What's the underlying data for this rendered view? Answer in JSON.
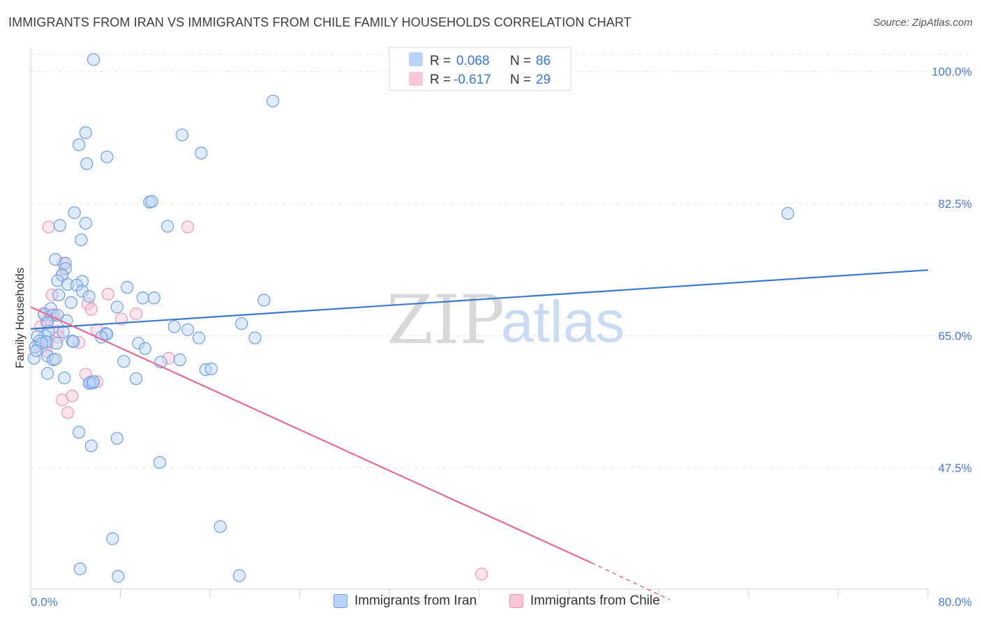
{
  "header": {
    "title": "IMMIGRANTS FROM IRAN VS IMMIGRANTS FROM CHILE FAMILY HOUSEHOLDS CORRELATION CHART",
    "source": "Source: ZipAtlas.com"
  },
  "watermark": {
    "zip": "ZIP",
    "atlas": "atlas"
  },
  "legend": {
    "r_label": "R =",
    "n_label": "N =",
    "items": [
      {
        "r": "0.068",
        "n": "86",
        "fill": "#b9d3f6",
        "stroke": "#6f9fe3"
      },
      {
        "r": "-0.617",
        "n": "29",
        "fill": "#f9c6d6",
        "stroke": "#ee94b1"
      }
    ]
  },
  "colors": {
    "iran": "#3a78d0",
    "iran_fill": "#b9d3f6",
    "chile": "#e26b94",
    "chile_fill": "#f8c4d4",
    "tick_text": "#4a7bd0"
  },
  "chart_data": {
    "type": "scatter",
    "title": "IMMIGRANTS FROM IRAN VS IMMIGRANTS FROM CHILE FAMILY HOUSEHOLDS CORRELATION CHART",
    "xlabel": "",
    "ylabel": "Family Households",
    "xlim": [
      0,
      80
    ],
    "ylim": [
      31.4,
      103.2
    ],
    "x_tick_labels": [
      "0.0%",
      "80.0%"
    ],
    "y_ticks": [
      {
        "value": 100.0,
        "label": "100.0%"
      },
      {
        "value": 82.5,
        "label": "82.5%"
      },
      {
        "value": 65.0,
        "label": "65.0%"
      },
      {
        "value": 47.5,
        "label": "47.5%"
      }
    ],
    "series": [
      {
        "name": "Immigrants from Iran",
        "trend": {
          "x": [
            0,
            80
          ],
          "y": [
            65.9,
            73.7
          ]
        },
        "points": [
          [
            5.6,
            101.6
          ],
          [
            21.6,
            96.1
          ],
          [
            4.9,
            91.9
          ],
          [
            13.5,
            91.6
          ],
          [
            4.3,
            90.3
          ],
          [
            15.2,
            89.2
          ],
          [
            6.8,
            88.7
          ],
          [
            5.0,
            87.8
          ],
          [
            10.6,
            82.7
          ],
          [
            10.8,
            82.8
          ],
          [
            3.9,
            81.3
          ],
          [
            67.5,
            81.2
          ],
          [
            4.9,
            79.9
          ],
          [
            2.6,
            79.6
          ],
          [
            12.2,
            79.5
          ],
          [
            4.5,
            77.7
          ],
          [
            2.2,
            75.1
          ],
          [
            3.1,
            74.6
          ],
          [
            3.1,
            73.9
          ],
          [
            2.8,
            73.0
          ],
          [
            2.4,
            72.3
          ],
          [
            4.6,
            72.2
          ],
          [
            3.3,
            71.8
          ],
          [
            4.1,
            71.7
          ],
          [
            8.6,
            71.4
          ],
          [
            4.6,
            70.9
          ],
          [
            2.5,
            70.4
          ],
          [
            5.2,
            70.2
          ],
          [
            10.0,
            70.0
          ],
          [
            11.0,
            70.0
          ],
          [
            20.8,
            69.7
          ],
          [
            3.6,
            69.4
          ],
          [
            7.7,
            68.8
          ],
          [
            1.8,
            68.6
          ],
          [
            1.2,
            67.8
          ],
          [
            1.9,
            67.7
          ],
          [
            2.4,
            67.7
          ],
          [
            3.2,
            67.0
          ],
          [
            1.5,
            66.7
          ],
          [
            18.8,
            66.6
          ],
          [
            12.8,
            66.2
          ],
          [
            14.0,
            65.8
          ],
          [
            1.6,
            65.6
          ],
          [
            2.9,
            65.5
          ],
          [
            6.7,
            65.3
          ],
          [
            6.8,
            65.2
          ],
          [
            6.3,
            64.8
          ],
          [
            1.3,
            65.0
          ],
          [
            0.6,
            64.9
          ],
          [
            15.0,
            64.7
          ],
          [
            20.0,
            64.7
          ],
          [
            0.8,
            64.3
          ],
          [
            1.4,
            64.2
          ],
          [
            3.7,
            64.3
          ],
          [
            3.8,
            64.2
          ],
          [
            2.3,
            64.0
          ],
          [
            9.6,
            64.0
          ],
          [
            0.4,
            63.5
          ],
          [
            10.2,
            63.3
          ],
          [
            1.5,
            62.3
          ],
          [
            2.0,
            61.8
          ],
          [
            2.2,
            61.9
          ],
          [
            8.3,
            61.6
          ],
          [
            11.6,
            61.5
          ],
          [
            13.3,
            61.8
          ],
          [
            0.3,
            62.0
          ],
          [
            15.6,
            60.5
          ],
          [
            16.1,
            60.6
          ],
          [
            1.5,
            60.0
          ],
          [
            3.0,
            59.4
          ],
          [
            9.4,
            59.3
          ],
          [
            5.3,
            58.8
          ],
          [
            5.2,
            58.7
          ],
          [
            5.5,
            58.7
          ],
          [
            4.3,
            52.2
          ],
          [
            7.7,
            51.4
          ],
          [
            5.4,
            50.4
          ],
          [
            11.5,
            48.2
          ],
          [
            16.9,
            39.7
          ],
          [
            7.3,
            38.1
          ],
          [
            4.4,
            34.1
          ],
          [
            7.8,
            33.1
          ],
          [
            18.6,
            33.2
          ],
          [
            5.6,
            58.9
          ],
          [
            1.0,
            64.0
          ],
          [
            0.5,
            63.0
          ]
        ]
      },
      {
        "name": "Immigrants from Chile",
        "trend": {
          "x": [
            0,
            50
          ],
          "y": [
            68.8,
            34.9
          ]
        },
        "trend_dashed": {
          "x": [
            50,
            57
          ],
          "y": [
            34.9,
            30.0
          ]
        },
        "points": [
          [
            1.6,
            79.4
          ],
          [
            14.0,
            79.4
          ],
          [
            2.9,
            74.6
          ],
          [
            2.8,
            73.1
          ],
          [
            1.9,
            70.4
          ],
          [
            6.9,
            70.5
          ],
          [
            5.1,
            69.2
          ],
          [
            5.4,
            68.5
          ],
          [
            1.2,
            68.0
          ],
          [
            2.1,
            67.8
          ],
          [
            1.7,
            67.5
          ],
          [
            8.1,
            67.2
          ],
          [
            9.4,
            67.9
          ],
          [
            1.4,
            66.8
          ],
          [
            0.9,
            66.2
          ],
          [
            5.9,
            65.8
          ],
          [
            2.4,
            65.6
          ],
          [
            2.5,
            64.8
          ],
          [
            4.3,
            64.1
          ],
          [
            1.5,
            64.0
          ],
          [
            0.7,
            63.7
          ],
          [
            1.4,
            62.9
          ],
          [
            12.3,
            62.0
          ],
          [
            4.9,
            59.9
          ],
          [
            5.9,
            58.9
          ],
          [
            3.7,
            57.0
          ],
          [
            2.8,
            56.5
          ],
          [
            3.3,
            54.8
          ],
          [
            40.2,
            33.4
          ]
        ]
      }
    ]
  },
  "bottom_legend": {
    "items": [
      {
        "label": "Immigrants from Iran"
      },
      {
        "label": "Immigrants from Chile"
      }
    ]
  }
}
